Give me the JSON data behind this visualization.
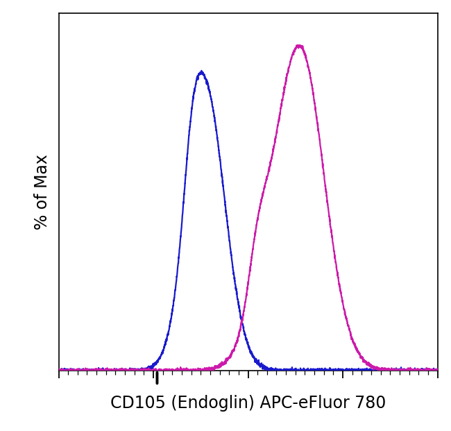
{
  "title": "",
  "xlabel": "CD105 (Endoglin) APC-eFluor 780",
  "ylabel": "% of Max",
  "blue_color": "#1A1ACD",
  "magenta_color": "#CC1AAA",
  "xmin": 2.5,
  "xmax": 4.5,
  "ymin": 0.0,
  "ymax": 1.1,
  "line_width": 1.6,
  "background_color": "#ffffff",
  "xlabel_fontsize": 17,
  "ylabel_fontsize": 17,
  "fig_width": 6.5,
  "fig_height": 6.21,
  "dpi": 100
}
